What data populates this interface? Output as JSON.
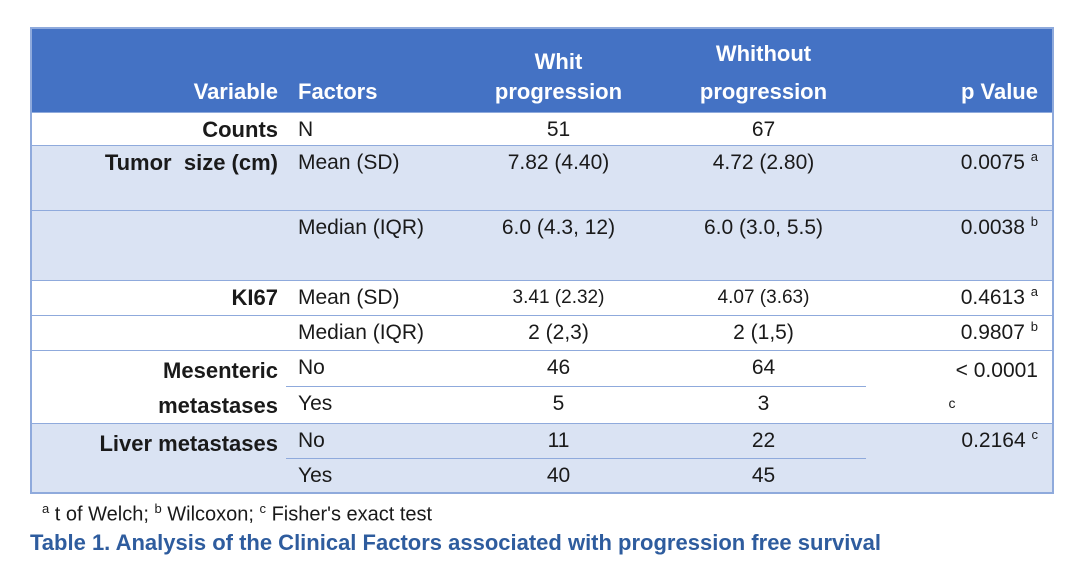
{
  "colors": {
    "header_bg": "#4472C4",
    "band_bg": "#DAE3F3",
    "border": "#8FAADC",
    "caption_text": "#2E5C9E",
    "header_text": "#FFFFFF",
    "body_text": "#1A1A1A"
  },
  "table": {
    "header": {
      "variable": "Variable",
      "factors": "Factors",
      "with_line1": "Whit",
      "with_line2": "progression",
      "without_line1": "Whithout",
      "without_line2": "progression",
      "p_value": "p Value"
    },
    "rows": [
      {
        "variable": "Counts",
        "factor": "N",
        "with_prog": "51",
        "without_prog": "67",
        "p": "",
        "p_sup": ""
      },
      {
        "variable": "Tumor  size (cm)",
        "factor": "Mean (SD)",
        "with_prog": "7.82 (4.40)",
        "without_prog": "4.72 (2.80)",
        "p": "0.0075",
        "p_sup": "a"
      },
      {
        "variable": "",
        "factor": "Median (IQR)",
        "with_prog": "6.0 (4.3, 12)",
        "without_prog": "6.0 (3.0, 5.5)",
        "p": "0.0038",
        "p_sup": "b"
      },
      {
        "variable": "KI67",
        "factor": "Mean (SD)",
        "with_prog": "3.41 (2.32)",
        "without_prog": "4.07 (3.63)",
        "p": "0.4613",
        "p_sup": "a"
      },
      {
        "variable": "",
        "factor": "Median (IQR)",
        "with_prog": "2 (2,3)",
        "without_prog": "2 (1,5)",
        "p": "0.9807",
        "p_sup": "b"
      },
      {
        "variable": "Mesenteric\nmetastases",
        "factor": "No",
        "with_prog": "46",
        "without_prog": "64",
        "p": "< 0.0001",
        "p_sup": "c"
      },
      {
        "factor": "Yes",
        "with_prog": "5",
        "without_prog": "3"
      },
      {
        "variable": "Liver metastases",
        "factor": "No",
        "with_prog": "11",
        "without_prog": "22",
        "p": "0.2164",
        "p_sup": "c"
      },
      {
        "factor": "Yes",
        "with_prog": "40",
        "without_prog": "45"
      }
    ]
  },
  "chart_data": {
    "type": "table",
    "title": "Table 1. Analysis of the Clinical Factors associated with progression free survival",
    "columns": [
      "Variable",
      "Factors",
      "Whit progression",
      "Whithout progression",
      "p Value"
    ],
    "rows": [
      [
        "Counts",
        "N",
        "51",
        "67",
        ""
      ],
      [
        "Tumor size (cm)",
        "Mean (SD)",
        "7.82 (4.40)",
        "4.72 (2.80)",
        "0.0075 a"
      ],
      [
        "",
        "Median (IQR)",
        "6.0 (4.3, 12)",
        "6.0 (3.0, 5.5)",
        "0.0038 b"
      ],
      [
        "KI67",
        "Mean (SD)",
        "3.41 (2.32)",
        "4.07 (3.63)",
        "0.4613 a"
      ],
      [
        "",
        "Median (IQR)",
        "2 (2,3)",
        "2 (1,5)",
        "0.9807 b"
      ],
      [
        "Mesenteric metastases",
        "No",
        "46",
        "64",
        "< 0.0001 c"
      ],
      [
        "",
        "Yes",
        "5",
        "3",
        ""
      ],
      [
        "Liver metastases",
        "No",
        "11",
        "22",
        "0.2164 c"
      ],
      [
        "",
        "Yes",
        "40",
        "45",
        ""
      ]
    ]
  },
  "footnote": {
    "sup_a": "a",
    "seg_a": " t of Welch; ",
    "sup_b": "b",
    "seg_b": " Wilcoxon; ",
    "sup_c": "c",
    "seg_c": " Fisher's exact test"
  },
  "caption": "Table 1. Analysis of the Clinical Factors associated with progression free survival"
}
